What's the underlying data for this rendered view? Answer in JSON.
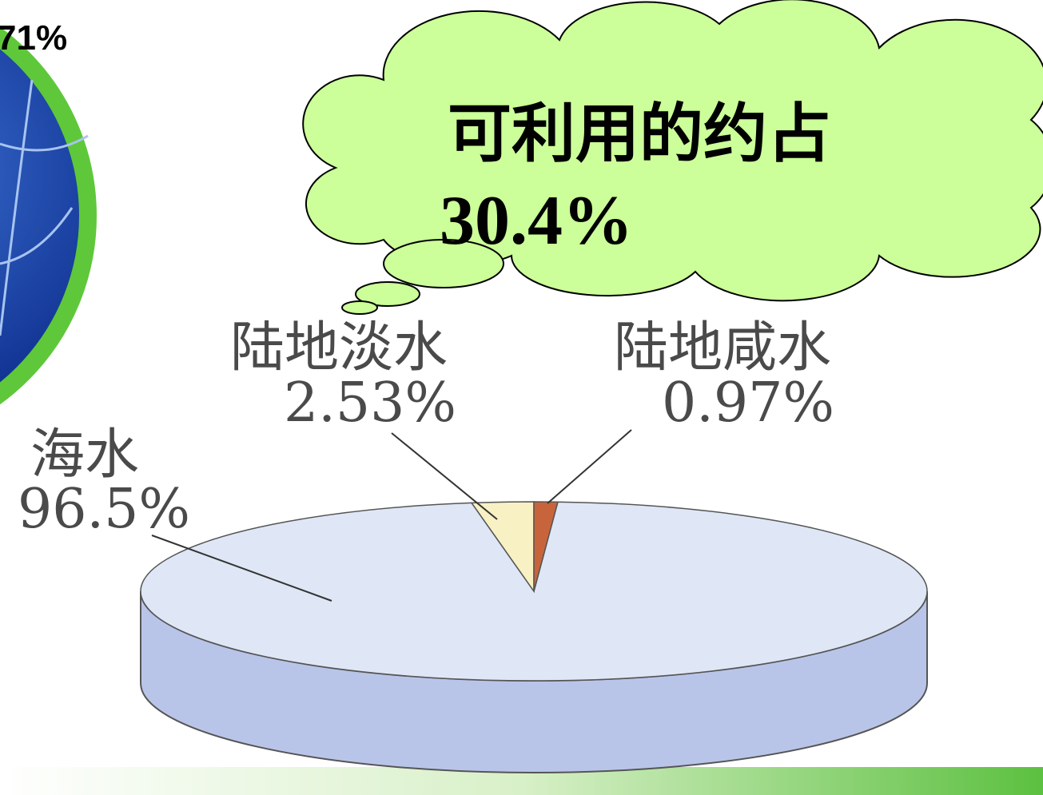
{
  "chart_data": {
    "type": "pie",
    "categories": [
      "海水",
      "陆地淡水",
      "陆地咸水"
    ],
    "values": [
      96.5,
      2.53,
      0.97
    ],
    "value_labels": [
      "96.5%",
      "2.53%",
      "0.97%"
    ],
    "colors": [
      "#dfe7f6",
      "#f8f1c4",
      "#c8643c"
    ],
    "annotations": [
      "71%",
      "可利用的约占",
      "30.4%"
    ]
  }
}
